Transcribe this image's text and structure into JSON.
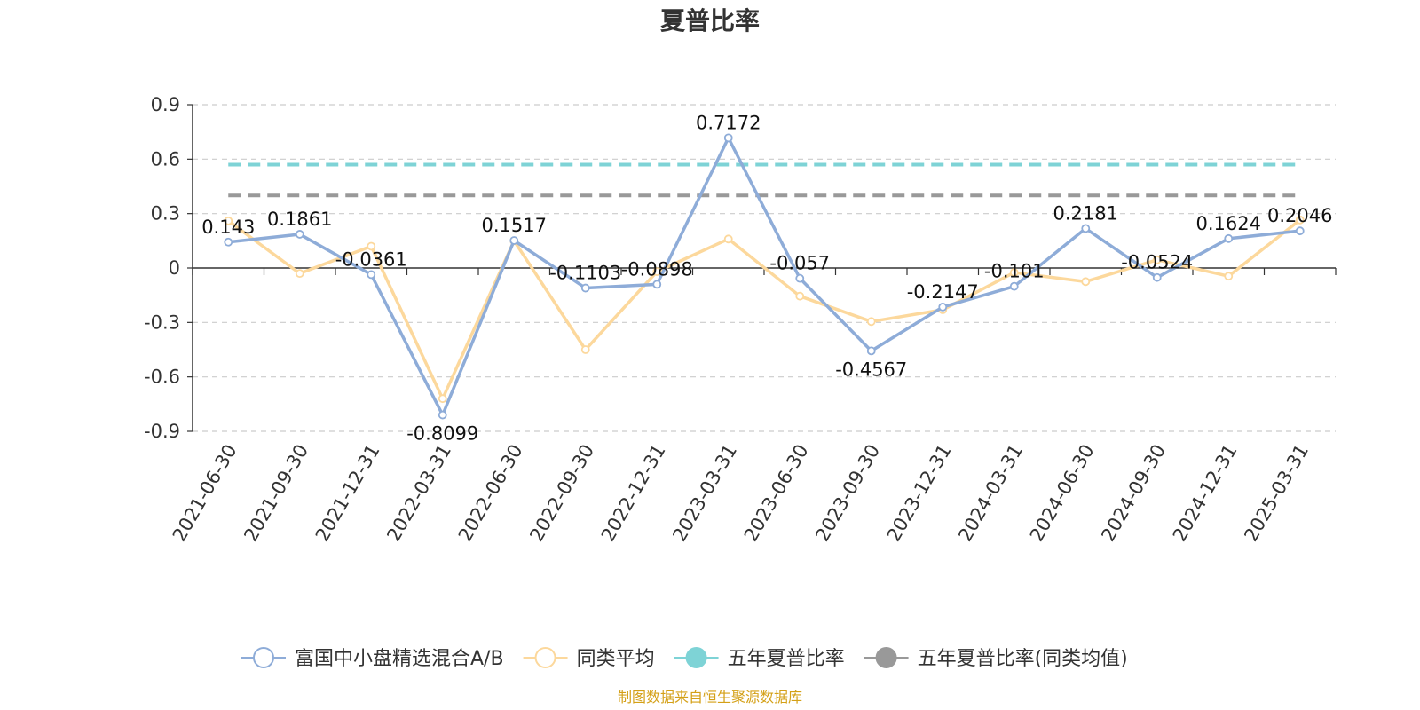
{
  "chart_data": {
    "type": "line",
    "title": "夏普比率",
    "categories": [
      "2021-06-30",
      "2021-09-30",
      "2021-12-31",
      "2022-03-31",
      "2022-06-30",
      "2022-09-30",
      "2022-12-31",
      "2023-03-31",
      "2023-06-30",
      "2023-09-30",
      "2023-12-31",
      "2024-03-31",
      "2024-06-30",
      "2024-09-30",
      "2024-12-31",
      "2025-03-31"
    ],
    "ylim": [
      -0.9,
      0.9
    ],
    "yticks": [
      "0.9",
      "0.6",
      "0.3",
      "0",
      "-0.3",
      "-0.6",
      "-0.9"
    ],
    "grid": true,
    "legend_position": "bottom",
    "series": [
      {
        "name": "富国中小盘精选混合A/B",
        "color": "#8eacd8",
        "values": [
          0.143,
          0.1861,
          -0.0361,
          -0.8099,
          0.1517,
          -0.1103,
          -0.0898,
          0.7172,
          -0.057,
          -0.4567,
          -0.2147,
          -0.101,
          0.2181,
          -0.0524,
          0.1624,
          0.2046
        ],
        "labels": [
          "0.143",
          "0.1861",
          "-0.0361",
          "-0.8099",
          "0.1517",
          "-0.1103",
          "-0.0898",
          "0.7172",
          "-0.057",
          "-0.4567",
          "-0.2147",
          "-0.101",
          "0.2181",
          "-0.0524",
          "0.1624",
          "0.2046"
        ]
      },
      {
        "name": "同类平均",
        "color": "#fcd89c",
        "values": [
          0.26,
          -0.03,
          0.12,
          -0.72,
          0.15,
          -0.45,
          -0.02,
          0.16,
          -0.155,
          -0.295,
          -0.23,
          -0.025,
          -0.075,
          0.045,
          -0.045,
          0.265
        ]
      },
      {
        "name": "五年夏普比率",
        "color": "#7ed3d6",
        "type": "reference",
        "value": 0.57
      },
      {
        "name": "五年夏普比率(同类均值)",
        "color": "#999999",
        "type": "reference",
        "value": 0.4
      }
    ],
    "source": "制图数据来自恒生聚源数据库"
  }
}
